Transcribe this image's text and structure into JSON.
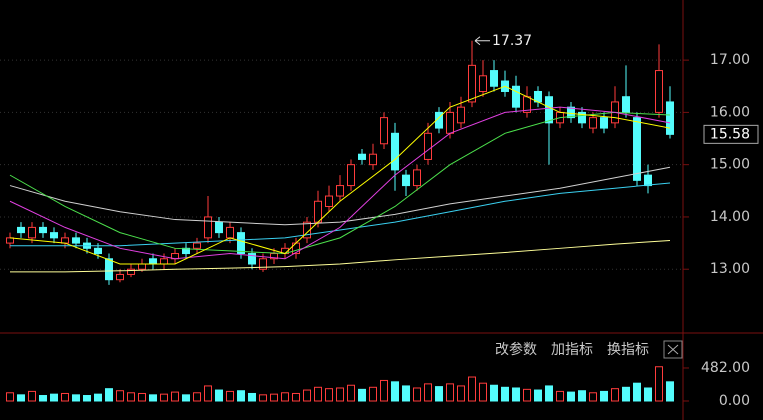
{
  "chart_data": {
    "type": "candlestick",
    "up_color": "#ff3c3c",
    "down_color": "#54fcfc",
    "open": [
      13.5,
      13.8,
      13.6,
      13.8,
      13.7,
      13.5,
      13.6,
      13.5,
      13.4,
      13.2,
      12.8,
      12.9,
      13.0,
      13.2,
      13.1,
      13.2,
      13.4,
      13.4,
      13.6,
      13.9,
      13.6,
      13.7,
      13.3,
      13.0,
      13.2,
      13.3,
      13.3,
      13.6,
      13.9,
      14.2,
      14.4,
      14.6,
      15.2,
      15.0,
      15.4,
      15.6,
      14.8,
      14.6,
      15.1,
      16.0,
      15.6,
      15.8,
      16.2,
      16.4,
      16.8,
      16.6,
      16.5,
      16.0,
      16.4,
      16.3,
      15.8,
      16.1,
      16.0,
      15.7,
      15.9,
      15.8,
      16.3,
      15.9,
      14.8,
      16.0,
      16.2
    ],
    "high": [
      13.7,
      13.9,
      13.9,
      13.9,
      13.8,
      13.7,
      13.7,
      13.6,
      13.5,
      13.3,
      13.0,
      13.1,
      13.2,
      13.3,
      13.3,
      13.4,
      13.5,
      13.6,
      14.4,
      14.0,
      13.9,
      13.8,
      13.4,
      13.3,
      13.4,
      13.5,
      13.6,
      14.0,
      14.5,
      14.6,
      14.8,
      15.1,
      15.3,
      15.4,
      16.0,
      15.8,
      14.9,
      15.0,
      15.8,
      16.1,
      16.2,
      16.3,
      17.37,
      17.0,
      17.0,
      16.8,
      16.7,
      16.5,
      16.5,
      16.4,
      16.1,
      16.2,
      16.1,
      16.0,
      16.0,
      16.5,
      16.9,
      16.0,
      15.0,
      17.3,
      16.5
    ],
    "low": [
      13.4,
      13.6,
      13.5,
      13.6,
      13.5,
      13.4,
      13.4,
      13.3,
      13.2,
      12.7,
      12.75,
      12.85,
      12.95,
      13.0,
      13.0,
      13.1,
      13.2,
      13.3,
      13.5,
      13.6,
      13.5,
      13.2,
      13.0,
      12.95,
      13.1,
      13.2,
      13.2,
      13.5,
      13.8,
      14.1,
      14.3,
      14.5,
      15.0,
      14.9,
      15.3,
      14.5,
      14.4,
      14.5,
      15.0,
      15.6,
      15.5,
      15.7,
      16.1,
      16.3,
      16.4,
      16.3,
      16.0,
      15.9,
      16.1,
      15.0,
      15.7,
      15.8,
      15.7,
      15.6,
      15.6,
      15.7,
      15.9,
      14.6,
      14.45,
      15.9,
      15.5
    ],
    "close": [
      13.6,
      13.7,
      13.8,
      13.7,
      13.6,
      13.6,
      13.5,
      13.4,
      13.3,
      12.8,
      12.9,
      13.0,
      13.1,
      13.1,
      13.2,
      13.3,
      13.3,
      13.5,
      14.0,
      13.7,
      13.8,
      13.3,
      13.1,
      13.2,
      13.3,
      13.4,
      13.5,
      13.9,
      14.3,
      14.4,
      14.6,
      15.0,
      15.1,
      15.2,
      15.9,
      14.9,
      14.6,
      14.9,
      15.6,
      15.7,
      16.0,
      16.1,
      16.9,
      16.7,
      16.5,
      16.4,
      16.1,
      16.3,
      16.2,
      15.8,
      16.0,
      15.9,
      15.8,
      15.9,
      15.7,
      16.2,
      16.0,
      14.7,
      14.6,
      16.8,
      15.58
    ],
    "ylim": [
      11.78,
      18.15
    ],
    "yticks": [
      {
        "value": 13,
        "label": "13.00"
      },
      {
        "value": 14,
        "label": "14.00"
      },
      {
        "value": 15,
        "label": "15.00"
      },
      {
        "value": 16,
        "label": "16.00"
      },
      {
        "value": 17,
        "label": "17.00"
      }
    ],
    "moving_averages": [
      {
        "color": "#ffff99",
        "x": [
          0,
          5,
          10,
          15,
          20,
          25,
          30,
          35,
          40,
          45,
          50,
          55,
          60
        ],
        "values": [
          12.95,
          12.95,
          12.97,
          13.0,
          13.02,
          13.05,
          13.1,
          13.18,
          13.25,
          13.32,
          13.4,
          13.48,
          13.55
        ]
      },
      {
        "color": "#d0d0d0",
        "x": [
          0,
          5,
          10,
          15,
          20,
          25,
          30,
          35,
          40,
          45,
          50,
          55,
          60
        ],
        "values": [
          14.6,
          14.3,
          14.1,
          13.95,
          13.9,
          13.85,
          13.9,
          14.05,
          14.25,
          14.4,
          14.55,
          14.75,
          14.95
        ]
      },
      {
        "color": "#3ad0f0",
        "x": [
          0,
          5,
          10,
          15,
          20,
          25,
          30,
          35,
          40,
          45,
          50,
          55,
          60
        ],
        "values": [
          13.45,
          13.45,
          13.45,
          13.5,
          13.55,
          13.6,
          13.75,
          13.9,
          14.1,
          14.3,
          14.45,
          14.55,
          14.65
        ]
      },
      {
        "color": "#4ce04c",
        "x": [
          0,
          5,
          10,
          15,
          20,
          25,
          30,
          35,
          40,
          45,
          50,
          55,
          60
        ],
        "values": [
          14.8,
          14.2,
          13.7,
          13.4,
          13.35,
          13.3,
          13.6,
          14.2,
          15.0,
          15.6,
          15.9,
          16.0,
          15.95
        ]
      },
      {
        "color": "#e040e0",
        "x": [
          0,
          5,
          10,
          15,
          20,
          25,
          30,
          35,
          40,
          45,
          50,
          55,
          60
        ],
        "values": [
          14.3,
          13.8,
          13.4,
          13.2,
          13.3,
          13.2,
          13.8,
          14.8,
          15.6,
          16.0,
          16.1,
          16.0,
          15.8
        ]
      },
      {
        "color": "#ffff00",
        "x": [
          0,
          5,
          10,
          15,
          20,
          25,
          30,
          35,
          40,
          45,
          50,
          55,
          60
        ],
        "values": [
          13.6,
          13.5,
          13.1,
          13.1,
          13.6,
          13.3,
          14.3,
          15.1,
          16.1,
          16.5,
          16.0,
          15.9,
          15.7
        ]
      }
    ],
    "volume": {
      "values": [
        120,
        90,
        140,
        80,
        100,
        110,
        90,
        80,
        100,
        180,
        150,
        120,
        110,
        90,
        100,
        130,
        90,
        120,
        220,
        160,
        140,
        150,
        110,
        90,
        100,
        120,
        110,
        160,
        200,
        180,
        190,
        230,
        170,
        200,
        300,
        280,
        220,
        190,
        250,
        210,
        250,
        220,
        350,
        260,
        230,
        200,
        190,
        170,
        160,
        220,
        140,
        130,
        150,
        120,
        140,
        180,
        200,
        260,
        190,
        500,
        280
      ],
      "ylim": [
        0,
        600
      ],
      "yticks": [
        {
          "value": 0,
          "label": "0.00"
        },
        {
          "value": 482,
          "label": "482.00"
        }
      ]
    }
  },
  "toolbar": {
    "buttons": [
      "改参数",
      "加指标",
      "换指标"
    ]
  }
}
